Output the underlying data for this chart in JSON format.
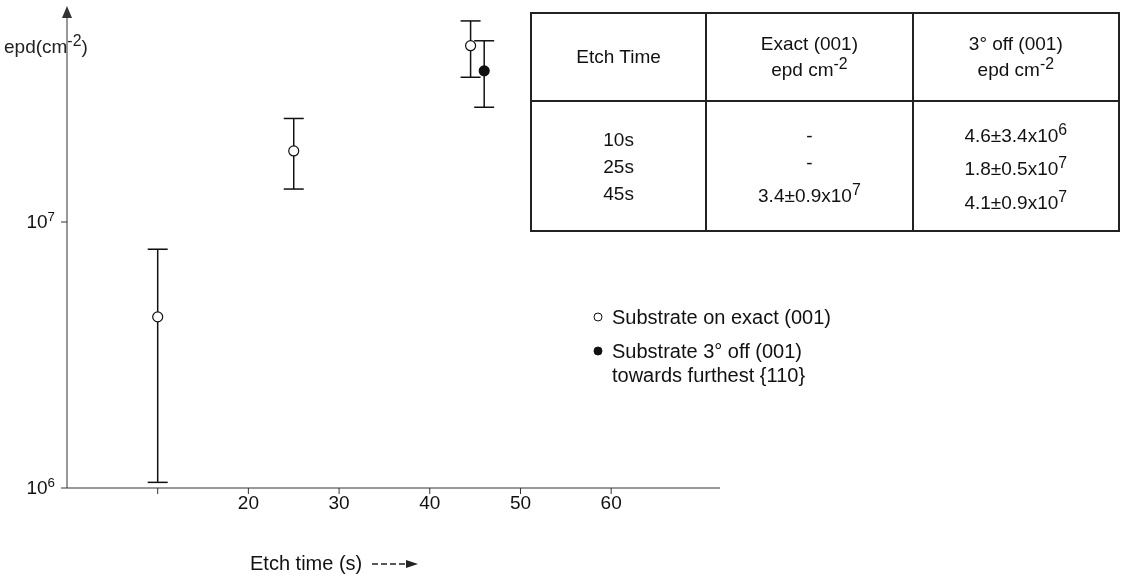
{
  "chart_data": {
    "type": "scatter",
    "ylabel": "epd(cm$^{-2}$)",
    "xlabel": "Etch time (s)",
    "log": "y",
    "xlim": [
      0,
      72
    ],
    "xticks": [
      {
        "value": 10,
        "label": null
      },
      20,
      30,
      40,
      50,
      60
    ],
    "ylim": [
      1000000,
      60000000
    ],
    "yticks": [
      {
        "value": 1000000,
        "label": "10$^{6}$"
      },
      {
        "value": 10000000,
        "label": "10$^{7}$"
      }
    ],
    "legend": "right",
    "series": [
      {
        "name": "Substrate on exact (001)",
        "color": "#ffffff",
        "marker": "circle",
        "x": [
          10,
          25,
          44.5
        ],
        "values": [
          4400000,
          18500000,
          46000000
        ],
        "errors": [
          [
            1050000,
            7900000
          ],
          [
            13300000,
            24500000
          ],
          [
            35000000,
            57000000
          ]
        ]
      },
      {
        "name": "Substrate 3° off (001)\ntowards furthest {110}",
        "color": "#111111",
        "marker": "circle",
        "x": [
          46
        ],
        "values": [
          37000000
        ],
        "errors": [
          [
            27000000,
            48000000
          ]
        ]
      }
    ],
    "annotations": [
      "Etch Time",
      "Exact (001)\nepd cm$^{-2}$",
      "3° off (001)\nepd cm$^{-2}$",
      "10s\n25s\n45s",
      "-\n-\n3.4±0.9x10$^{7}$",
      "4.6±3.4x10$^{6}$\n1.8±0.5x10$^{7}$\n4.1±0.9x10$^{7}$"
    ]
  }
}
